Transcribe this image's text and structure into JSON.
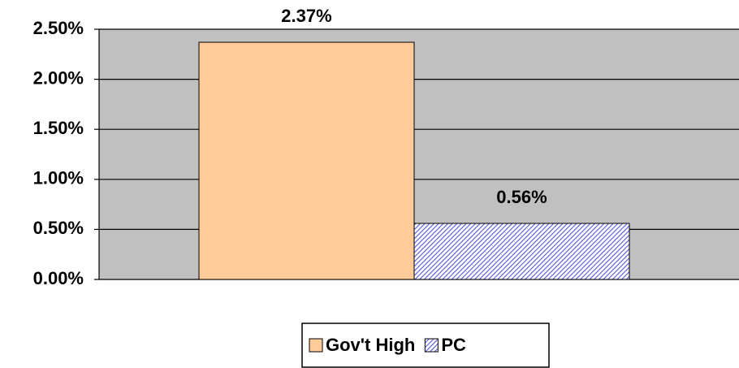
{
  "chart_data": {
    "type": "bar",
    "categories": [
      null
    ],
    "series": [
      {
        "name": "Gov't High",
        "color": "#ffcc99",
        "values": [
          2.37
        ],
        "value_labels": [
          "2.37%"
        ]
      },
      {
        "name": "PC",
        "color": "#5555dd",
        "pattern": "hatch",
        "values": [
          0.56
        ],
        "value_labels": [
          "0.56%"
        ]
      }
    ],
    "ylim": [
      0,
      2.5
    ],
    "yticks": [
      {
        "value": 0,
        "label": "0.00%"
      },
      {
        "value": 0.5,
        "label": "0.50%"
      },
      {
        "value": 1,
        "label": "1.00%"
      },
      {
        "value": 1.5,
        "label": "1.50%"
      },
      {
        "value": 2,
        "label": "2.00%"
      },
      {
        "value": 2.5,
        "label": "2.50%"
      }
    ],
    "grid": true,
    "plot_background": "#c0c0c0",
    "legend": "bottom"
  }
}
